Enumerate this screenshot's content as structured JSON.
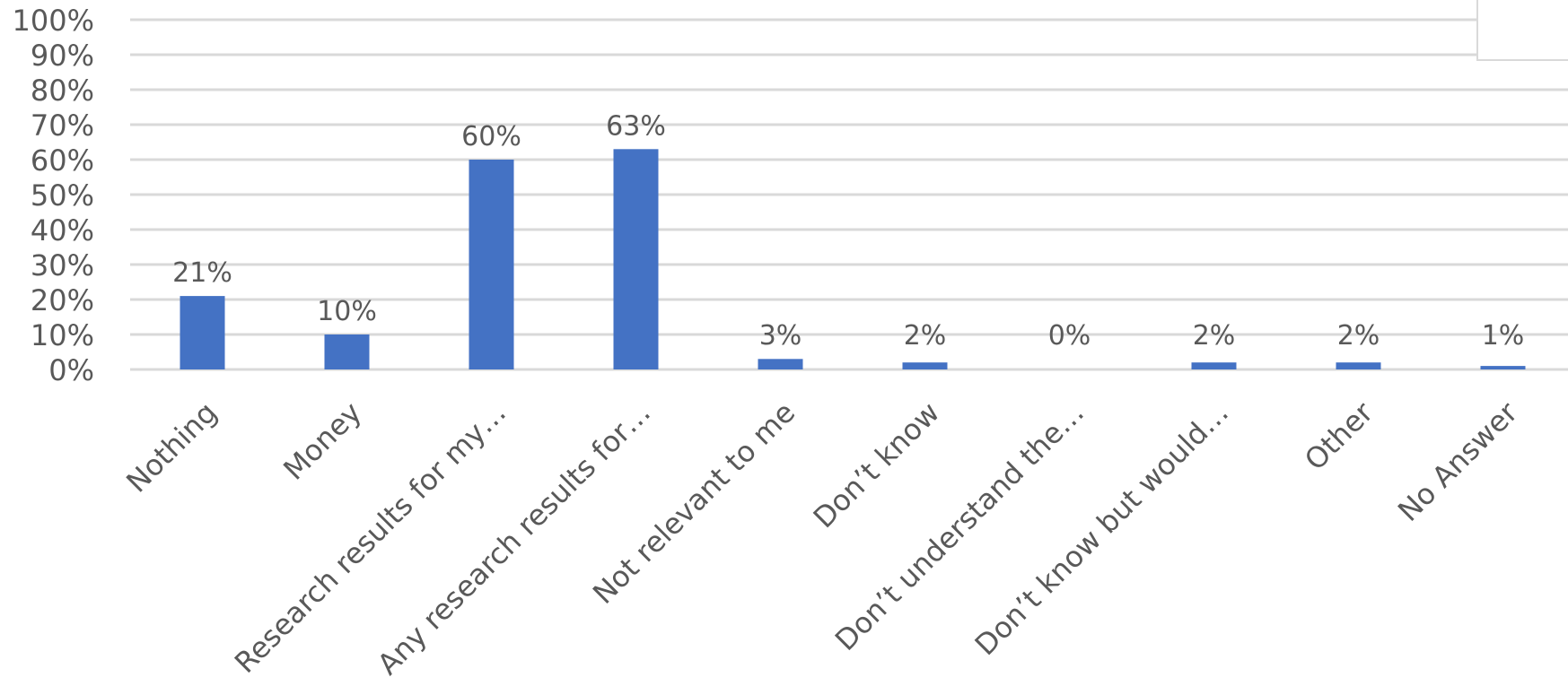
{
  "colors": {
    "bar": "#4472c4",
    "grid": "#d9d9d9",
    "text": "#595959"
  },
  "chart_data": {
    "type": "bar",
    "title": "",
    "xlabel": "",
    "ylabel": "",
    "ylim": [
      0,
      100
    ],
    "yticks": [
      "0%",
      "10%",
      "20%",
      "30%",
      "40%",
      "50%",
      "60%",
      "70%",
      "80%",
      "90%",
      "100%"
    ],
    "grid": true,
    "legend": "top-right",
    "categories": [
      "Nothing",
      "Money",
      "Research results for my…",
      "Any research results for…",
      "Not relevant to me",
      "Don’t know",
      "Don’t understand the…",
      "Don’t know but would…",
      "Other",
      "No Answer"
    ],
    "values": [
      21,
      10,
      60,
      63,
      3,
      2,
      0,
      2,
      2,
      1
    ],
    "data_labels": [
      "21%",
      "10%",
      "60%",
      "63%",
      "3%",
      "2%",
      "0%",
      "2%",
      "2%",
      "1%"
    ]
  }
}
